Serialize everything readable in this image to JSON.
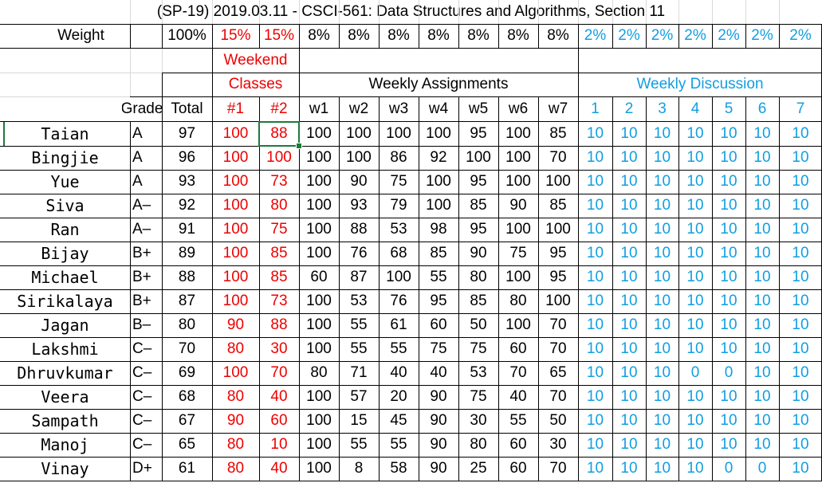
{
  "title": "(SP-19) 2019.03.11 - CSCI-561: Data Structures and Algorithms, Section 11",
  "weight_row": {
    "label": "Weight",
    "total": "100%",
    "weekend": [
      "15%",
      "15%"
    ],
    "assignments": [
      "8%",
      "8%",
      "8%",
      "8%",
      "8%",
      "8%",
      "8%"
    ],
    "discussion": [
      "2%",
      "2%",
      "2%",
      "2%",
      "2%",
      "2%",
      "2%"
    ]
  },
  "group_headers": {
    "weekend_line1": "Weekend",
    "weekend_line2": "Classes",
    "assignments": "Weekly Assignments",
    "discussion": "Weekly Discussion"
  },
  "columns": {
    "grade": "Grade",
    "total": "Total",
    "weekend": [
      "#1",
      "#2"
    ],
    "assignments": [
      "w1",
      "w2",
      "w3",
      "w4",
      "w5",
      "w6",
      "w7"
    ],
    "discussion": [
      "1",
      "2",
      "3",
      "4",
      "5",
      "6",
      "7"
    ]
  },
  "colors": {
    "red": "#ee0000",
    "blue": "#119ee0",
    "selection": "#1e7a3a"
  },
  "students": [
    {
      "name": "Taian",
      "grade": "A",
      "total": "97",
      "weekend": [
        "100",
        "88"
      ],
      "weekly": [
        "100",
        "100",
        "100",
        "100",
        "95",
        "100",
        "85"
      ],
      "discussion": [
        "10",
        "10",
        "10",
        "10",
        "10",
        "10",
        "10"
      ]
    },
    {
      "name": "Bingjie",
      "grade": "A",
      "total": "96",
      "weekend": [
        "100",
        "100"
      ],
      "weekly": [
        "100",
        "100",
        "86",
        "92",
        "100",
        "100",
        "70"
      ],
      "discussion": [
        "10",
        "10",
        "10",
        "10",
        "10",
        "10",
        "10"
      ]
    },
    {
      "name": "Yue",
      "grade": "A",
      "total": "93",
      "weekend": [
        "100",
        "73"
      ],
      "weekly": [
        "100",
        "90",
        "75",
        "100",
        "95",
        "100",
        "100"
      ],
      "discussion": [
        "10",
        "10",
        "10",
        "10",
        "10",
        "10",
        "10"
      ]
    },
    {
      "name": "Siva",
      "grade": "A–",
      "total": "92",
      "weekend": [
        "100",
        "80"
      ],
      "weekly": [
        "100",
        "93",
        "79",
        "100",
        "85",
        "90",
        "85"
      ],
      "discussion": [
        "10",
        "10",
        "10",
        "10",
        "10",
        "10",
        "10"
      ]
    },
    {
      "name": "Ran",
      "grade": "A–",
      "total": "91",
      "weekend": [
        "100",
        "75"
      ],
      "weekly": [
        "100",
        "88",
        "53",
        "98",
        "95",
        "100",
        "100"
      ],
      "discussion": [
        "10",
        "10",
        "10",
        "10",
        "10",
        "10",
        "10"
      ]
    },
    {
      "name": "Bijay",
      "grade": "B+",
      "total": "89",
      "weekend": [
        "100",
        "85"
      ],
      "weekly": [
        "100",
        "76",
        "68",
        "85",
        "90",
        "75",
        "95"
      ],
      "discussion": [
        "10",
        "10",
        "10",
        "10",
        "10",
        "10",
        "10"
      ]
    },
    {
      "name": "Michael",
      "grade": "B+",
      "total": "88",
      "weekend": [
        "100",
        "85"
      ],
      "weekly": [
        "60",
        "87",
        "100",
        "55",
        "80",
        "100",
        "95"
      ],
      "discussion": [
        "10",
        "10",
        "10",
        "10",
        "10",
        "10",
        "10"
      ]
    },
    {
      "name": "Sirikalaya",
      "grade": "B+",
      "total": "87",
      "weekend": [
        "100",
        "73"
      ],
      "weekly": [
        "100",
        "53",
        "76",
        "95",
        "85",
        "80",
        "100"
      ],
      "discussion": [
        "10",
        "10",
        "10",
        "10",
        "10",
        "10",
        "10"
      ]
    },
    {
      "name": "Jagan",
      "grade": "B–",
      "total": "80",
      "weekend": [
        "90",
        "88"
      ],
      "weekly": [
        "100",
        "55",
        "61",
        "60",
        "50",
        "100",
        "70"
      ],
      "discussion": [
        "10",
        "10",
        "10",
        "10",
        "10",
        "10",
        "10"
      ]
    },
    {
      "name": "Lakshmi",
      "grade": "C–",
      "total": "70",
      "weekend": [
        "80",
        "30"
      ],
      "weekly": [
        "100",
        "55",
        "55",
        "75",
        "75",
        "60",
        "70"
      ],
      "discussion": [
        "10",
        "10",
        "10",
        "10",
        "10",
        "10",
        "10"
      ]
    },
    {
      "name": "Dhruvkumar",
      "grade": "C–",
      "total": "69",
      "weekend": [
        "100",
        "70"
      ],
      "weekly": [
        "80",
        "71",
        "40",
        "40",
        "53",
        "70",
        "65"
      ],
      "discussion": [
        "10",
        "10",
        "10",
        "0",
        "0",
        "10",
        "10"
      ]
    },
    {
      "name": "Veera",
      "grade": "C–",
      "total": "68",
      "weekend": [
        "80",
        "40"
      ],
      "weekly": [
        "100",
        "57",
        "20",
        "90",
        "75",
        "40",
        "70"
      ],
      "discussion": [
        "10",
        "10",
        "10",
        "10",
        "10",
        "10",
        "10"
      ]
    },
    {
      "name": "Sampath",
      "grade": "C–",
      "total": "67",
      "weekend": [
        "90",
        "60"
      ],
      "weekly": [
        "100",
        "15",
        "45",
        "90",
        "30",
        "55",
        "50"
      ],
      "discussion": [
        "10",
        "10",
        "10",
        "10",
        "10",
        "10",
        "10"
      ]
    },
    {
      "name": "Manoj",
      "grade": "C–",
      "total": "65",
      "weekend": [
        "80",
        "10"
      ],
      "weekly": [
        "100",
        "55",
        "55",
        "90",
        "80",
        "60",
        "30"
      ],
      "discussion": [
        "10",
        "10",
        "10",
        "10",
        "10",
        "10",
        "10"
      ]
    },
    {
      "name": "Vinay",
      "grade": "D+",
      "total": "61",
      "weekend": [
        "80",
        "40"
      ],
      "weekly": [
        "100",
        "8",
        "58",
        "90",
        "25",
        "60",
        "70"
      ],
      "discussion": [
        "10",
        "10",
        "10",
        "10",
        "0",
        "0",
        "10"
      ]
    }
  ]
}
